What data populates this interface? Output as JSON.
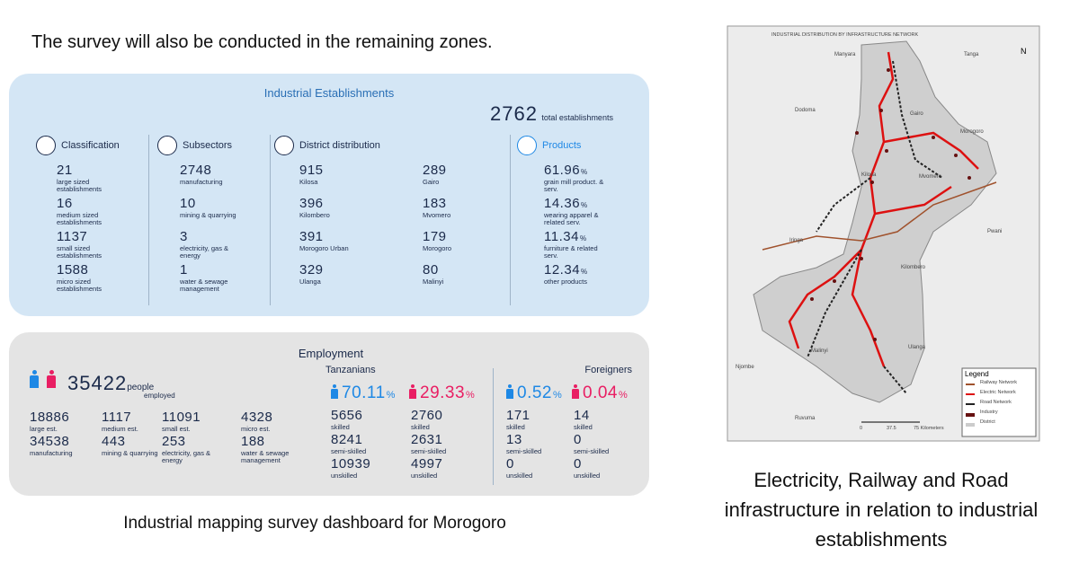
{
  "header": {
    "text": "The survey will also be conducted in the remaining zones."
  },
  "industrial": {
    "title": "Industrial Establishments",
    "total": {
      "value": "2762",
      "label": "total establishments"
    },
    "classification": {
      "title": "Classification",
      "items": [
        {
          "value": "21",
          "label": "large sized establishments"
        },
        {
          "value": "16",
          "label": "medium sized establishments"
        },
        {
          "value": "1137",
          "label": "small sized establishments"
        },
        {
          "value": "1588",
          "label": "micro sized establishments"
        }
      ]
    },
    "subsectors": {
      "title": "Subsectors",
      "items": [
        {
          "value": "2748",
          "label": "manufacturing"
        },
        {
          "value": "10",
          "label": "mining & quarrying"
        },
        {
          "value": "3",
          "label": "electricity, gas & energy"
        },
        {
          "value": "1",
          "label": "water & sewage management"
        }
      ]
    },
    "district": {
      "title": "District distribution",
      "items": [
        {
          "value": "915",
          "label": "Kilosa"
        },
        {
          "value": "396",
          "label": "Kilombero"
        },
        {
          "value": "391",
          "label": "Morogoro Urban"
        },
        {
          "value": "329",
          "label": "Ulanga"
        },
        {
          "value": "289",
          "label": "Gairo"
        },
        {
          "value": "183",
          "label": "Mvomero"
        },
        {
          "value": "179",
          "label": "Morogoro"
        },
        {
          "value": "80",
          "label": "Malinyi"
        }
      ]
    },
    "products": {
      "title": "Products",
      "items": [
        {
          "value": "61.96",
          "unit": "%",
          "label": "grain mill product. & serv."
        },
        {
          "value": "14.36",
          "unit": "%",
          "label": "wearing apparel & related serv."
        },
        {
          "value": "11.34",
          "unit": "%",
          "label": "furniture & related serv."
        },
        {
          "value": "12.34",
          "unit": "%",
          "label": "other products"
        }
      ]
    }
  },
  "employment": {
    "title": "Employment",
    "total": {
      "value": "35422",
      "unit": "people",
      "label": "employed"
    },
    "breakdown": [
      {
        "value": "18886",
        "label": "large est."
      },
      {
        "value": "1117",
        "label": "medium est."
      },
      {
        "value": "11091",
        "label": "small est."
      },
      {
        "value": "4328",
        "label": "micro est."
      },
      {
        "value": "34538",
        "label": "manufacturing"
      },
      {
        "value": "443",
        "label": "mining & quarrying"
      },
      {
        "value": "253",
        "label": "electricity, gas & energy"
      },
      {
        "value": "188",
        "label": "water & sewage management"
      }
    ],
    "tanzanians": {
      "title": "Tanzanians",
      "male": {
        "value": "70.11",
        "unit": "%"
      },
      "female": {
        "value": "29.33",
        "unit": "%"
      },
      "male_items": [
        {
          "value": "5656",
          "label": "skilled"
        },
        {
          "value": "8241",
          "label": "semi-skilled"
        },
        {
          "value": "10939",
          "label": "unskilled"
        }
      ],
      "female_items": [
        {
          "value": "2760",
          "label": "skilled"
        },
        {
          "value": "2631",
          "label": "semi-skilled"
        },
        {
          "value": "4997",
          "label": "unskilled"
        }
      ]
    },
    "foreigners": {
      "title": "Foreigners",
      "male": {
        "value": "0.52",
        "unit": "%"
      },
      "female": {
        "value": "0.04",
        "unit": "%"
      },
      "male_items": [
        {
          "value": "171",
          "label": "skilled"
        },
        {
          "value": "13",
          "label": "semi-skilled"
        },
        {
          "value": "0",
          "label": "unskilled"
        }
      ],
      "female_items": [
        {
          "value": "14",
          "label": "skilled"
        },
        {
          "value": "0",
          "label": "semi-skilled"
        },
        {
          "value": "0",
          "label": "unskilled"
        }
      ]
    }
  },
  "caption": "Industrial mapping survey dashboard for Morogoro",
  "map": {
    "title": "INDUSTRIAL DISTRIBUTION BY INFRASTRUCTURE NETWORK",
    "north": "N",
    "places": [
      "Manyara",
      "Tanga",
      "Dodoma",
      "Gairo",
      "Morogoro",
      "Kilosa",
      "Mvomero",
      "Pwani",
      "Iringa",
      "Kilombero",
      "Malinyi",
      "Ulanga",
      "Njombe",
      "Ruvuma"
    ],
    "legend": {
      "title": "Legend",
      "items": [
        "Railway Network",
        "Electric Network",
        "Road Network",
        "Industry",
        "District"
      ]
    },
    "scale": [
      "0",
      "37.5",
      "75 Kilometers"
    ]
  },
  "map_caption": "Electricity, Railway and Road infrastructure in relation to industrial establishments"
}
